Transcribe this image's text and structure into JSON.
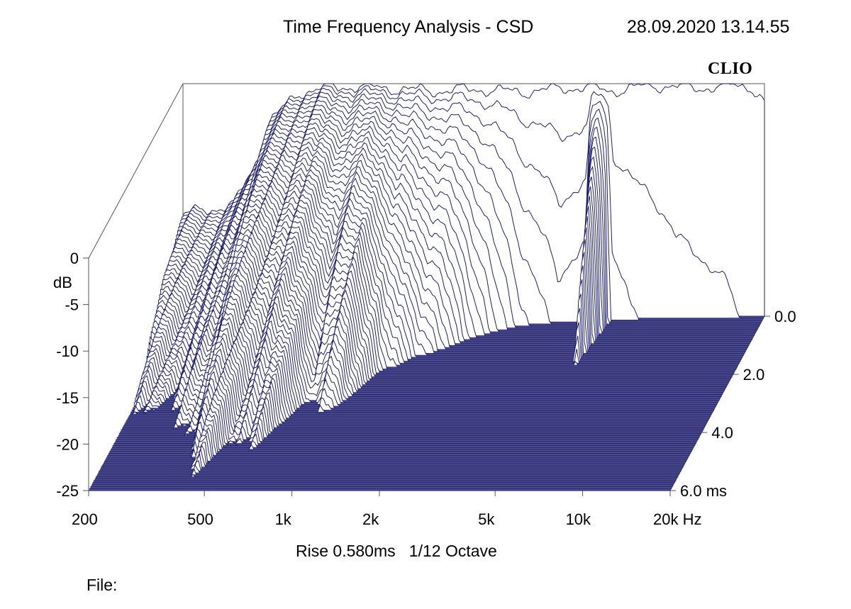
{
  "header": {
    "title": "Time Frequency Analysis - CSD",
    "timestamp": "28.09.2020 13.14.55",
    "brand": "CLIO"
  },
  "footer": {
    "settings": "Rise 0.580ms   1/12 Octave",
    "file_label": "File:"
  },
  "colors": {
    "trace": "#1f1f6e",
    "floor": "#1f1f6e",
    "frame": "#555555",
    "background": "#ffffff"
  },
  "chart_data": {
    "type": "waterfall",
    "title": "Time Frequency Analysis - CSD",
    "x_axis": {
      "unit": "Hz",
      "scale": "log",
      "range": [
        200,
        20000
      ],
      "ticks": [
        200,
        500,
        1000,
        2000,
        5000,
        10000,
        20000
      ],
      "tick_labels": [
        "200",
        "500",
        "1k",
        "2k",
        "5k",
        "10k",
        "20k Hz"
      ]
    },
    "y_axis": {
      "unit": "dB",
      "label": "dB",
      "range": [
        -25,
        0
      ],
      "ticks": [
        0,
        -5,
        -10,
        -15,
        -20,
        -25
      ],
      "tick_labels": [
        "0",
        "-5",
        "-10",
        "-15",
        "-20",
        "-25"
      ]
    },
    "z_axis": {
      "unit": "ms",
      "range": [
        0,
        6
      ],
      "ticks": [
        0,
        2,
        4,
        6
      ],
      "tick_labels": [
        "0.0",
        "2.0",
        "4.0",
        "6.0 ms"
      ]
    },
    "rise_time_ms": 0.58,
    "smoothing": "1/12 Octave",
    "slice_count": 90,
    "initial_response_db": {
      "freq_hz": [
        200,
        250,
        300,
        350,
        400,
        500,
        600,
        800,
        1000,
        1500,
        2000,
        3000,
        4000,
        5000,
        6000,
        8000,
        10000,
        12000,
        15000,
        18000,
        20000
      ],
      "level_db": [
        -14,
        -13.5,
        -13,
        -9,
        -4,
        -1,
        -0.5,
        -0.3,
        -0.5,
        -0.8,
        -0.6,
        -0.9,
        -0.5,
        -0.4,
        -0.8,
        -0.2,
        -0.3,
        -0.5,
        -0.2,
        -0.3,
        -2
      ]
    },
    "decay_time_ms": {
      "freq_hz": [
        200,
        300,
        400,
        500,
        700,
        800,
        1000,
        1200,
        1500,
        2000,
        2500,
        3000,
        4000,
        5000,
        5500,
        6000,
        7000,
        10000,
        15000,
        20000
      ],
      "time_ms": [
        6.0,
        6.0,
        6.0,
        5.0,
        4.0,
        3.0,
        3.5,
        2.0,
        1.6,
        1.0,
        0.6,
        0.4,
        0.25,
        0.3,
        1.9,
        0.2,
        0.15,
        0.1,
        0.08,
        0.05
      ]
    }
  }
}
